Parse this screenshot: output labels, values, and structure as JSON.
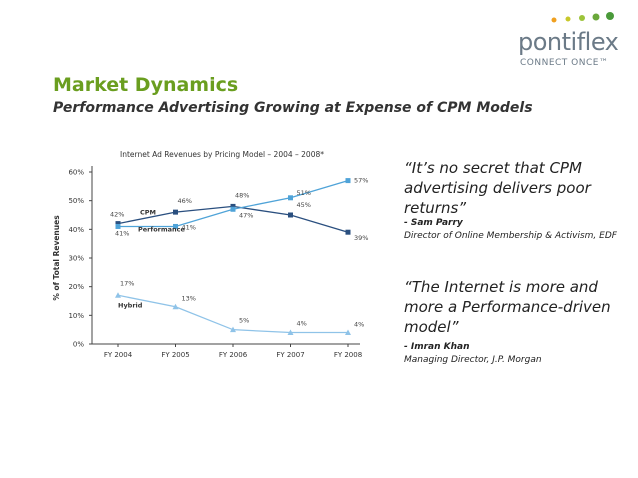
{
  "slide": {
    "title": "Market Dynamics",
    "subtitle": "Performance Advertising Growing at Expense of CPM Models"
  },
  "logo": {
    "name": "pontiflex",
    "tagline": "CONNECT ONCE™",
    "dot_colors": [
      "#f0a020",
      "#c8c82a",
      "#9cc43a",
      "#6aa83a",
      "#4a9a3a"
    ]
  },
  "quotes": [
    {
      "text": "“It’s no secret that CPM advertising delivers poor returns”",
      "author": "- Sam Parry",
      "role": "Director of Online Membership & Activism, EDF"
    },
    {
      "text": "“The Internet is more and more a Performance-driven model”",
      "author": "- Imran Khan",
      "role": "Managing Director, J.P. Morgan"
    }
  ],
  "chart_data": {
    "type": "line",
    "title": "Internet Ad Revenues by Pricing Model – 2004 – 2008*",
    "ylabel": "% of Total Revenues",
    "xlabel": "",
    "ylim": [
      0,
      60
    ],
    "yticks": [
      "0%",
      "10%",
      "20%",
      "30%",
      "40%",
      "50%",
      "60%"
    ],
    "categories": [
      "FY 2004",
      "FY 2005",
      "FY 2006",
      "FY 2007",
      "FY 2008"
    ],
    "series": [
      {
        "name": "CPM",
        "color": "#2a4f7f",
        "marker": "square",
        "values": [
          42,
          46,
          48,
          45,
          39
        ],
        "labels": [
          "42%",
          "46%",
          "48%",
          "45%",
          "39%"
        ]
      },
      {
        "name": "Performance",
        "color": "#4fa3d8",
        "marker": "square",
        "values": [
          41,
          41,
          47,
          51,
          57
        ],
        "labels": [
          "41%",
          "41%",
          "47%",
          "51%",
          "57%"
        ]
      },
      {
        "name": "Hybrid",
        "color": "#8fc3e8",
        "marker": "triangle",
        "values": [
          17,
          13,
          5,
          4,
          4
        ],
        "labels": [
          "17%",
          "13%",
          "5%",
          "4%",
          "4%"
        ]
      }
    ],
    "grid": false
  }
}
